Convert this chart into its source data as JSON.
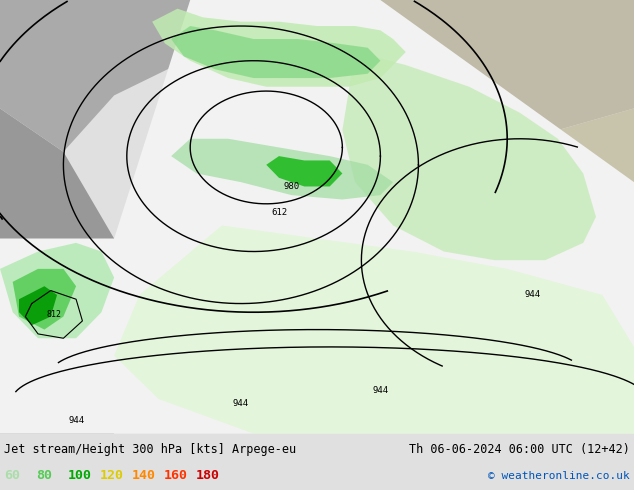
{
  "title_left": "Jet stream/Height 300 hPa [kts] Arpege-eu",
  "title_right": "Th 06-06-2024 06:00 UTC (12+42)",
  "copyright": "© weatheronline.co.uk",
  "legend_values": [
    "60",
    "80",
    "100",
    "120",
    "140",
    "160",
    "180"
  ],
  "legend_colors": [
    "#aaddaa",
    "#55cc55",
    "#00aa00",
    "#ddcc00",
    "#ff8800",
    "#ff3300",
    "#cc0000"
  ],
  "land_color": "#c8c8a8",
  "ocean_color": "#a8a8a8",
  "white_region": "#f0f0f0",
  "light_green1": "#c8f0c0",
  "light_green2": "#90d890",
  "mid_green": "#44bb44",
  "dark_green": "#009900",
  "footer_bg": "#e0e0e0",
  "fig_width": 6.34,
  "fig_height": 4.9,
  "dpi": 100
}
